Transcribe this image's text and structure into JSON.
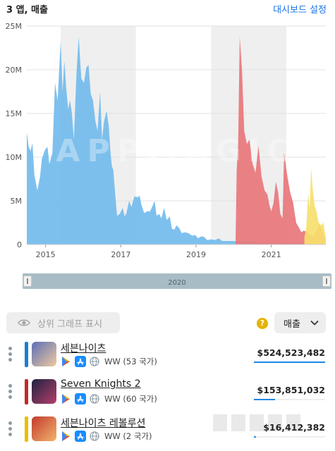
{
  "header": {
    "title": "3 앱, 매출",
    "settings_link": "대시보드 설정"
  },
  "chart_data": {
    "type": "area",
    "watermark": "APPMAGIC",
    "y_ticks": [
      "25M",
      "20M",
      "15M",
      "10M",
      "5M",
      "0"
    ],
    "ylim": [
      0,
      25000000
    ],
    "x_ticks": [
      "2015",
      "2017",
      "2019",
      "2021"
    ],
    "x_tick_values": [
      2015.0,
      2017.0,
      2019.0,
      2021.0
    ],
    "xlim": [
      2014.5,
      2022.45
    ],
    "shaded_years": [
      [
        2015.4,
        2017.4
      ],
      [
        2019.4,
        2021.4
      ]
    ],
    "series": [
      {
        "name": "세븐나이츠",
        "color": "#73bbeb",
        "points": [
          [
            2014.5,
            12.8
          ],
          [
            2014.55,
            11.2
          ],
          [
            2014.6,
            10.7
          ],
          [
            2014.65,
            11.6
          ],
          [
            2014.7,
            8.0
          ],
          [
            2014.78,
            6.2
          ],
          [
            2014.85,
            7.7
          ],
          [
            2014.9,
            9.8
          ],
          [
            2014.98,
            10.8
          ],
          [
            2015.05,
            11.2
          ],
          [
            2015.1,
            9.2
          ],
          [
            2015.18,
            10.5
          ],
          [
            2015.25,
            18.5
          ],
          [
            2015.32,
            16.5
          ],
          [
            2015.4,
            23.3
          ],
          [
            2015.45,
            17.5
          ],
          [
            2015.5,
            21.0
          ],
          [
            2015.55,
            17.8
          ],
          [
            2015.6,
            15.5
          ],
          [
            2015.65,
            16.5
          ],
          [
            2015.7,
            15.0
          ],
          [
            2015.75,
            12.0
          ],
          [
            2015.82,
            19.5
          ],
          [
            2015.88,
            23.8
          ],
          [
            2015.95,
            19.0
          ],
          [
            2016.02,
            18.5
          ],
          [
            2016.08,
            20.2
          ],
          [
            2016.14,
            20.6
          ],
          [
            2016.2,
            17.2
          ],
          [
            2016.26,
            16.5
          ],
          [
            2016.32,
            14.2
          ],
          [
            2016.38,
            13.0
          ],
          [
            2016.45,
            17.5
          ],
          [
            2016.5,
            12.0
          ],
          [
            2016.55,
            14.0
          ],
          [
            2016.62,
            15.3
          ],
          [
            2016.68,
            13.5
          ],
          [
            2016.72,
            10.8
          ],
          [
            2016.76,
            9.0
          ],
          [
            2016.8,
            8.5
          ],
          [
            2016.85,
            5.8
          ],
          [
            2016.9,
            3.3
          ],
          [
            2016.97,
            3.5
          ],
          [
            2017.05,
            4.2
          ],
          [
            2017.1,
            3.2
          ],
          [
            2017.15,
            3.6
          ],
          [
            2017.22,
            5.0
          ],
          [
            2017.28,
            4.3
          ],
          [
            2017.36,
            5.5
          ],
          [
            2017.45,
            5.4
          ],
          [
            2017.5,
            5.6
          ],
          [
            2017.55,
            4.5
          ],
          [
            2017.62,
            3.6
          ],
          [
            2017.7,
            3.8
          ],
          [
            2017.78,
            3.8
          ],
          [
            2017.85,
            4.5
          ],
          [
            2017.9,
            5.0
          ],
          [
            2017.95,
            3.3
          ],
          [
            2018.02,
            3.5
          ],
          [
            2018.08,
            3.0
          ],
          [
            2018.15,
            4.2
          ],
          [
            2018.22,
            2.8
          ],
          [
            2018.3,
            3.2
          ],
          [
            2018.36,
            1.8
          ],
          [
            2018.42,
            1.7
          ],
          [
            2018.48,
            2.2
          ],
          [
            2018.55,
            1.9
          ],
          [
            2018.62,
            1.3
          ],
          [
            2018.7,
            1.4
          ],
          [
            2018.8,
            1.3
          ],
          [
            2018.9,
            1.0
          ],
          [
            2018.98,
            1.1
          ],
          [
            2019.05,
            0.7
          ],
          [
            2019.12,
            0.9
          ],
          [
            2019.2,
            0.9
          ],
          [
            2019.3,
            0.5
          ],
          [
            2019.4,
            0.6
          ],
          [
            2019.5,
            0.5
          ],
          [
            2019.6,
            0.7
          ],
          [
            2019.7,
            0.4
          ],
          [
            2019.85,
            0.4
          ],
          [
            2020.0,
            0.4
          ],
          [
            2020.2,
            0.3
          ],
          [
            2020.5,
            0.3
          ],
          [
            2020.8,
            0.2
          ],
          [
            2021.1,
            0.2
          ],
          [
            2021.4,
            0.2
          ],
          [
            2021.7,
            0.2
          ],
          [
            2022.0,
            0.1
          ],
          [
            2022.45,
            0.1
          ]
        ]
      },
      {
        "name": "Seven Knights 2",
        "color": "#e8767b",
        "points": [
          [
            2020.05,
            0.2
          ],
          [
            2020.08,
            8.5
          ],
          [
            2020.12,
            11.5
          ],
          [
            2020.16,
            23.8
          ],
          [
            2020.22,
            20.0
          ],
          [
            2020.28,
            13.0
          ],
          [
            2020.35,
            11.5
          ],
          [
            2020.42,
            12.0
          ],
          [
            2020.5,
            9.3
          ],
          [
            2020.58,
            8.2
          ],
          [
            2020.66,
            11.3
          ],
          [
            2020.74,
            7.8
          ],
          [
            2020.82,
            6.2
          ],
          [
            2020.9,
            5.7
          ],
          [
            2020.95,
            4.5
          ],
          [
            2021.0,
            3.8
          ],
          [
            2021.06,
            4.8
          ],
          [
            2021.12,
            7.2
          ],
          [
            2021.18,
            6.0
          ],
          [
            2021.24,
            3.5
          ],
          [
            2021.3,
            3.0
          ],
          [
            2021.34,
            10.5
          ],
          [
            2021.42,
            8.0
          ],
          [
            2021.5,
            6.0
          ],
          [
            2021.58,
            4.8
          ],
          [
            2021.66,
            2.5
          ],
          [
            2021.74,
            1.9
          ],
          [
            2021.8,
            1.4
          ],
          [
            2021.86,
            1.6
          ],
          [
            2021.92,
            1.5
          ],
          [
            2021.98,
            1.3
          ],
          [
            2022.05,
            1.1
          ],
          [
            2022.12,
            1.0
          ],
          [
            2022.2,
            1.6
          ],
          [
            2022.28,
            2.3
          ],
          [
            2022.36,
            1.5
          ],
          [
            2022.42,
            0.8
          ],
          [
            2022.45,
            0.3
          ]
        ]
      },
      {
        "name": "세븐나이츠 레볼루션",
        "color": "#f6e06e",
        "points": [
          [
            2021.88,
            0.8
          ],
          [
            2021.93,
            2.0
          ],
          [
            2021.98,
            5.8
          ],
          [
            2022.02,
            4.2
          ],
          [
            2022.06,
            8.8
          ],
          [
            2022.1,
            6.5
          ],
          [
            2022.15,
            4.5
          ],
          [
            2022.2,
            3.8
          ],
          [
            2022.26,
            2.5
          ],
          [
            2022.32,
            2.2
          ],
          [
            2022.38,
            2.5
          ],
          [
            2022.42,
            1.5
          ],
          [
            2022.45,
            0.8
          ]
        ]
      }
    ]
  },
  "range_selector": {
    "label": "2020"
  },
  "controls": {
    "toggle_top_chart_label": "상위 그래프 표시",
    "help_symbol": "?",
    "metric_select_value": "매출"
  },
  "apps": [
    {
      "name": "세븐나이츠",
      "color": "#1a7fd4",
      "icon_colors": [
        "#5b6fb5",
        "#f0c9a0"
      ],
      "region": "WW (53 국가)",
      "revenue": "$524,523,482",
      "revenue_share": 1.0
    },
    {
      "name": "Seven Knights 2",
      "color": "#c62828",
      "icon_colors": [
        "#1d2340",
        "#b63e6c"
      ],
      "region": "WW (60 국가)",
      "revenue": "$153,851,032",
      "revenue_share": 0.293
    },
    {
      "name": "세븐나이츠 레볼루션",
      "color": "#e9bf00",
      "icon_colors": [
        "#c23b2f",
        "#f2b36b"
      ],
      "region": "WW (2 국가)",
      "revenue": "$16,412,382",
      "revenue_share": 0.031
    }
  ]
}
